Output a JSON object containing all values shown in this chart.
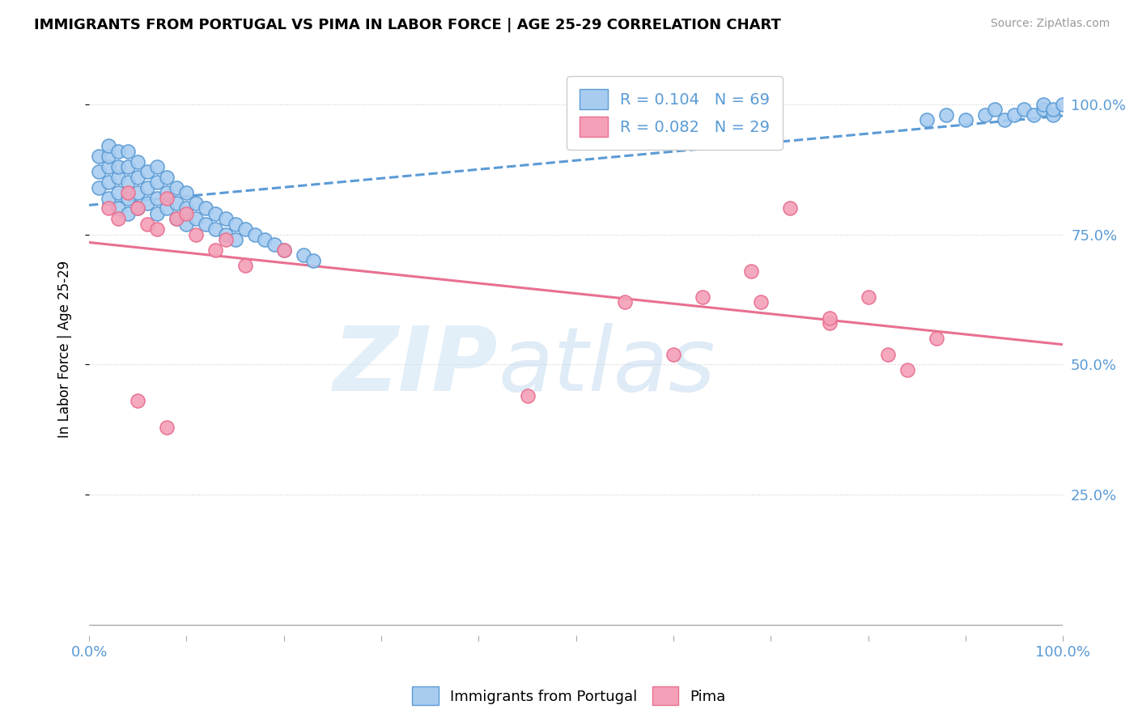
{
  "title": "IMMIGRANTS FROM PORTUGAL VS PIMA IN LABOR FORCE | AGE 25-29 CORRELATION CHART",
  "source_text": "Source: ZipAtlas.com",
  "ylabel": "In Labor Force | Age 25-29",
  "xlim": [
    0.0,
    1.0
  ],
  "ylim": [
    -0.02,
    1.08
  ],
  "x_ticks": [
    0.0,
    0.1,
    0.2,
    0.3,
    0.4,
    0.5,
    0.6,
    0.7,
    0.8,
    0.9,
    1.0
  ],
  "x_tick_labels": [
    "0.0%",
    "",
    "",
    "",
    "",
    "",
    "",
    "",
    "",
    "",
    "100.0%"
  ],
  "y_tick_labels_right": [
    "25.0%",
    "50.0%",
    "75.0%",
    "100.0%"
  ],
  "y_ticks_right": [
    0.25,
    0.5,
    0.75,
    1.0
  ],
  "blue_R": 0.104,
  "blue_N": 69,
  "pink_R": 0.082,
  "pink_N": 29,
  "blue_color": "#A8CCF0",
  "pink_color": "#F4A0B8",
  "blue_line_color": "#5B9BD5",
  "pink_line_color": "#E87090",
  "legend_label_blue": "Immigrants from Portugal",
  "legend_label_pink": "Pima",
  "blue_x": [
    0.01,
    0.01,
    0.01,
    0.02,
    0.02,
    0.02,
    0.02,
    0.02,
    0.03,
    0.03,
    0.03,
    0.03,
    0.03,
    0.04,
    0.04,
    0.04,
    0.04,
    0.04,
    0.05,
    0.05,
    0.05,
    0.05,
    0.06,
    0.06,
    0.06,
    0.07,
    0.07,
    0.07,
    0.07,
    0.08,
    0.08,
    0.08,
    0.09,
    0.09,
    0.09,
    0.1,
    0.1,
    0.1,
    0.11,
    0.11,
    0.12,
    0.12,
    0.13,
    0.13,
    0.14,
    0.14,
    0.15,
    0.15,
    0.16,
    0.17,
    0.18,
    0.19,
    0.2,
    0.22,
    0.23,
    0.86,
    0.88,
    0.9,
    0.92,
    0.93,
    0.94,
    0.95,
    0.96,
    0.97,
    0.98,
    0.98,
    0.99,
    0.99,
    1.0
  ],
  "blue_y": [
    0.84,
    0.87,
    0.9,
    0.82,
    0.85,
    0.88,
    0.9,
    0.92,
    0.8,
    0.83,
    0.86,
    0.88,
    0.91,
    0.79,
    0.82,
    0.85,
    0.88,
    0.91,
    0.8,
    0.83,
    0.86,
    0.89,
    0.81,
    0.84,
    0.87,
    0.79,
    0.82,
    0.85,
    0.88,
    0.8,
    0.83,
    0.86,
    0.78,
    0.81,
    0.84,
    0.77,
    0.8,
    0.83,
    0.78,
    0.81,
    0.77,
    0.8,
    0.76,
    0.79,
    0.75,
    0.78,
    0.74,
    0.77,
    0.76,
    0.75,
    0.74,
    0.73,
    0.72,
    0.71,
    0.7,
    0.97,
    0.98,
    0.97,
    0.98,
    0.99,
    0.97,
    0.98,
    0.99,
    0.98,
    0.99,
    1.0,
    0.98,
    0.99,
    1.0
  ],
  "pink_x": [
    0.02,
    0.03,
    0.04,
    0.05,
    0.06,
    0.07,
    0.08,
    0.09,
    0.1,
    0.11,
    0.13,
    0.14,
    0.16,
    0.2,
    0.45,
    0.55,
    0.6,
    0.63,
    0.68,
    0.72,
    0.76,
    0.8,
    0.82,
    0.84,
    0.87,
    0.76,
    0.69,
    0.05,
    0.08
  ],
  "pink_y": [
    0.8,
    0.78,
    0.83,
    0.8,
    0.77,
    0.76,
    0.82,
    0.78,
    0.79,
    0.75,
    0.72,
    0.74,
    0.69,
    0.72,
    0.44,
    0.62,
    0.52,
    0.63,
    0.68,
    0.8,
    0.58,
    0.63,
    0.52,
    0.49,
    0.55,
    0.59,
    0.62,
    0.43,
    0.38
  ]
}
